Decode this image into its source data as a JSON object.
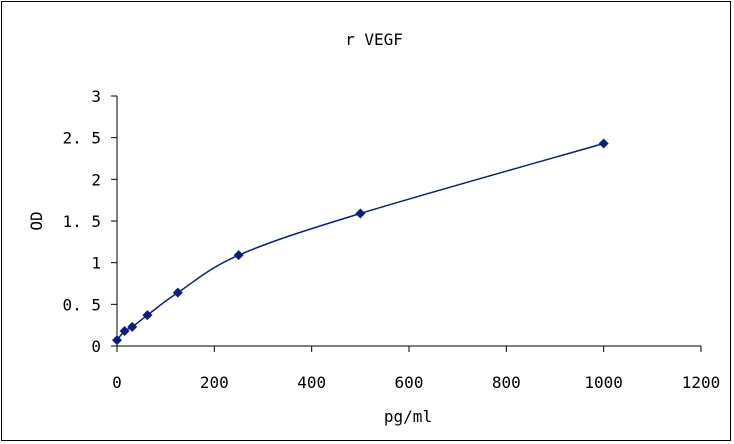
{
  "chart_data": {
    "type": "line",
    "title": "r VEGF",
    "xlabel": "pg/ml",
    "ylabel": "OD",
    "xlim": [
      0,
      1200
    ],
    "ylim": [
      0,
      3
    ],
    "xticks": [
      0,
      200,
      400,
      600,
      800,
      1000,
      1200
    ],
    "yticks": [
      0,
      0.5,
      1,
      1.5,
      2,
      2.5,
      3
    ],
    "xtick_labels": [
      "0",
      "200",
      "400",
      "600",
      "800",
      "1000",
      "1200"
    ],
    "ytick_labels": [
      "0",
      "0. 5",
      "1",
      "1. 5",
      "2",
      "2. 5",
      "3"
    ],
    "grid": false,
    "legend": "none",
    "series": [
      {
        "color": "#0a1f7a",
        "marker": "diamond",
        "x": [
          0,
          15.6,
          31.25,
          62.5,
          125,
          250,
          500,
          1000
        ],
        "y": [
          0.07,
          0.18,
          0.23,
          0.37,
          0.64,
          1.09,
          1.59,
          2.43
        ]
      }
    ]
  }
}
